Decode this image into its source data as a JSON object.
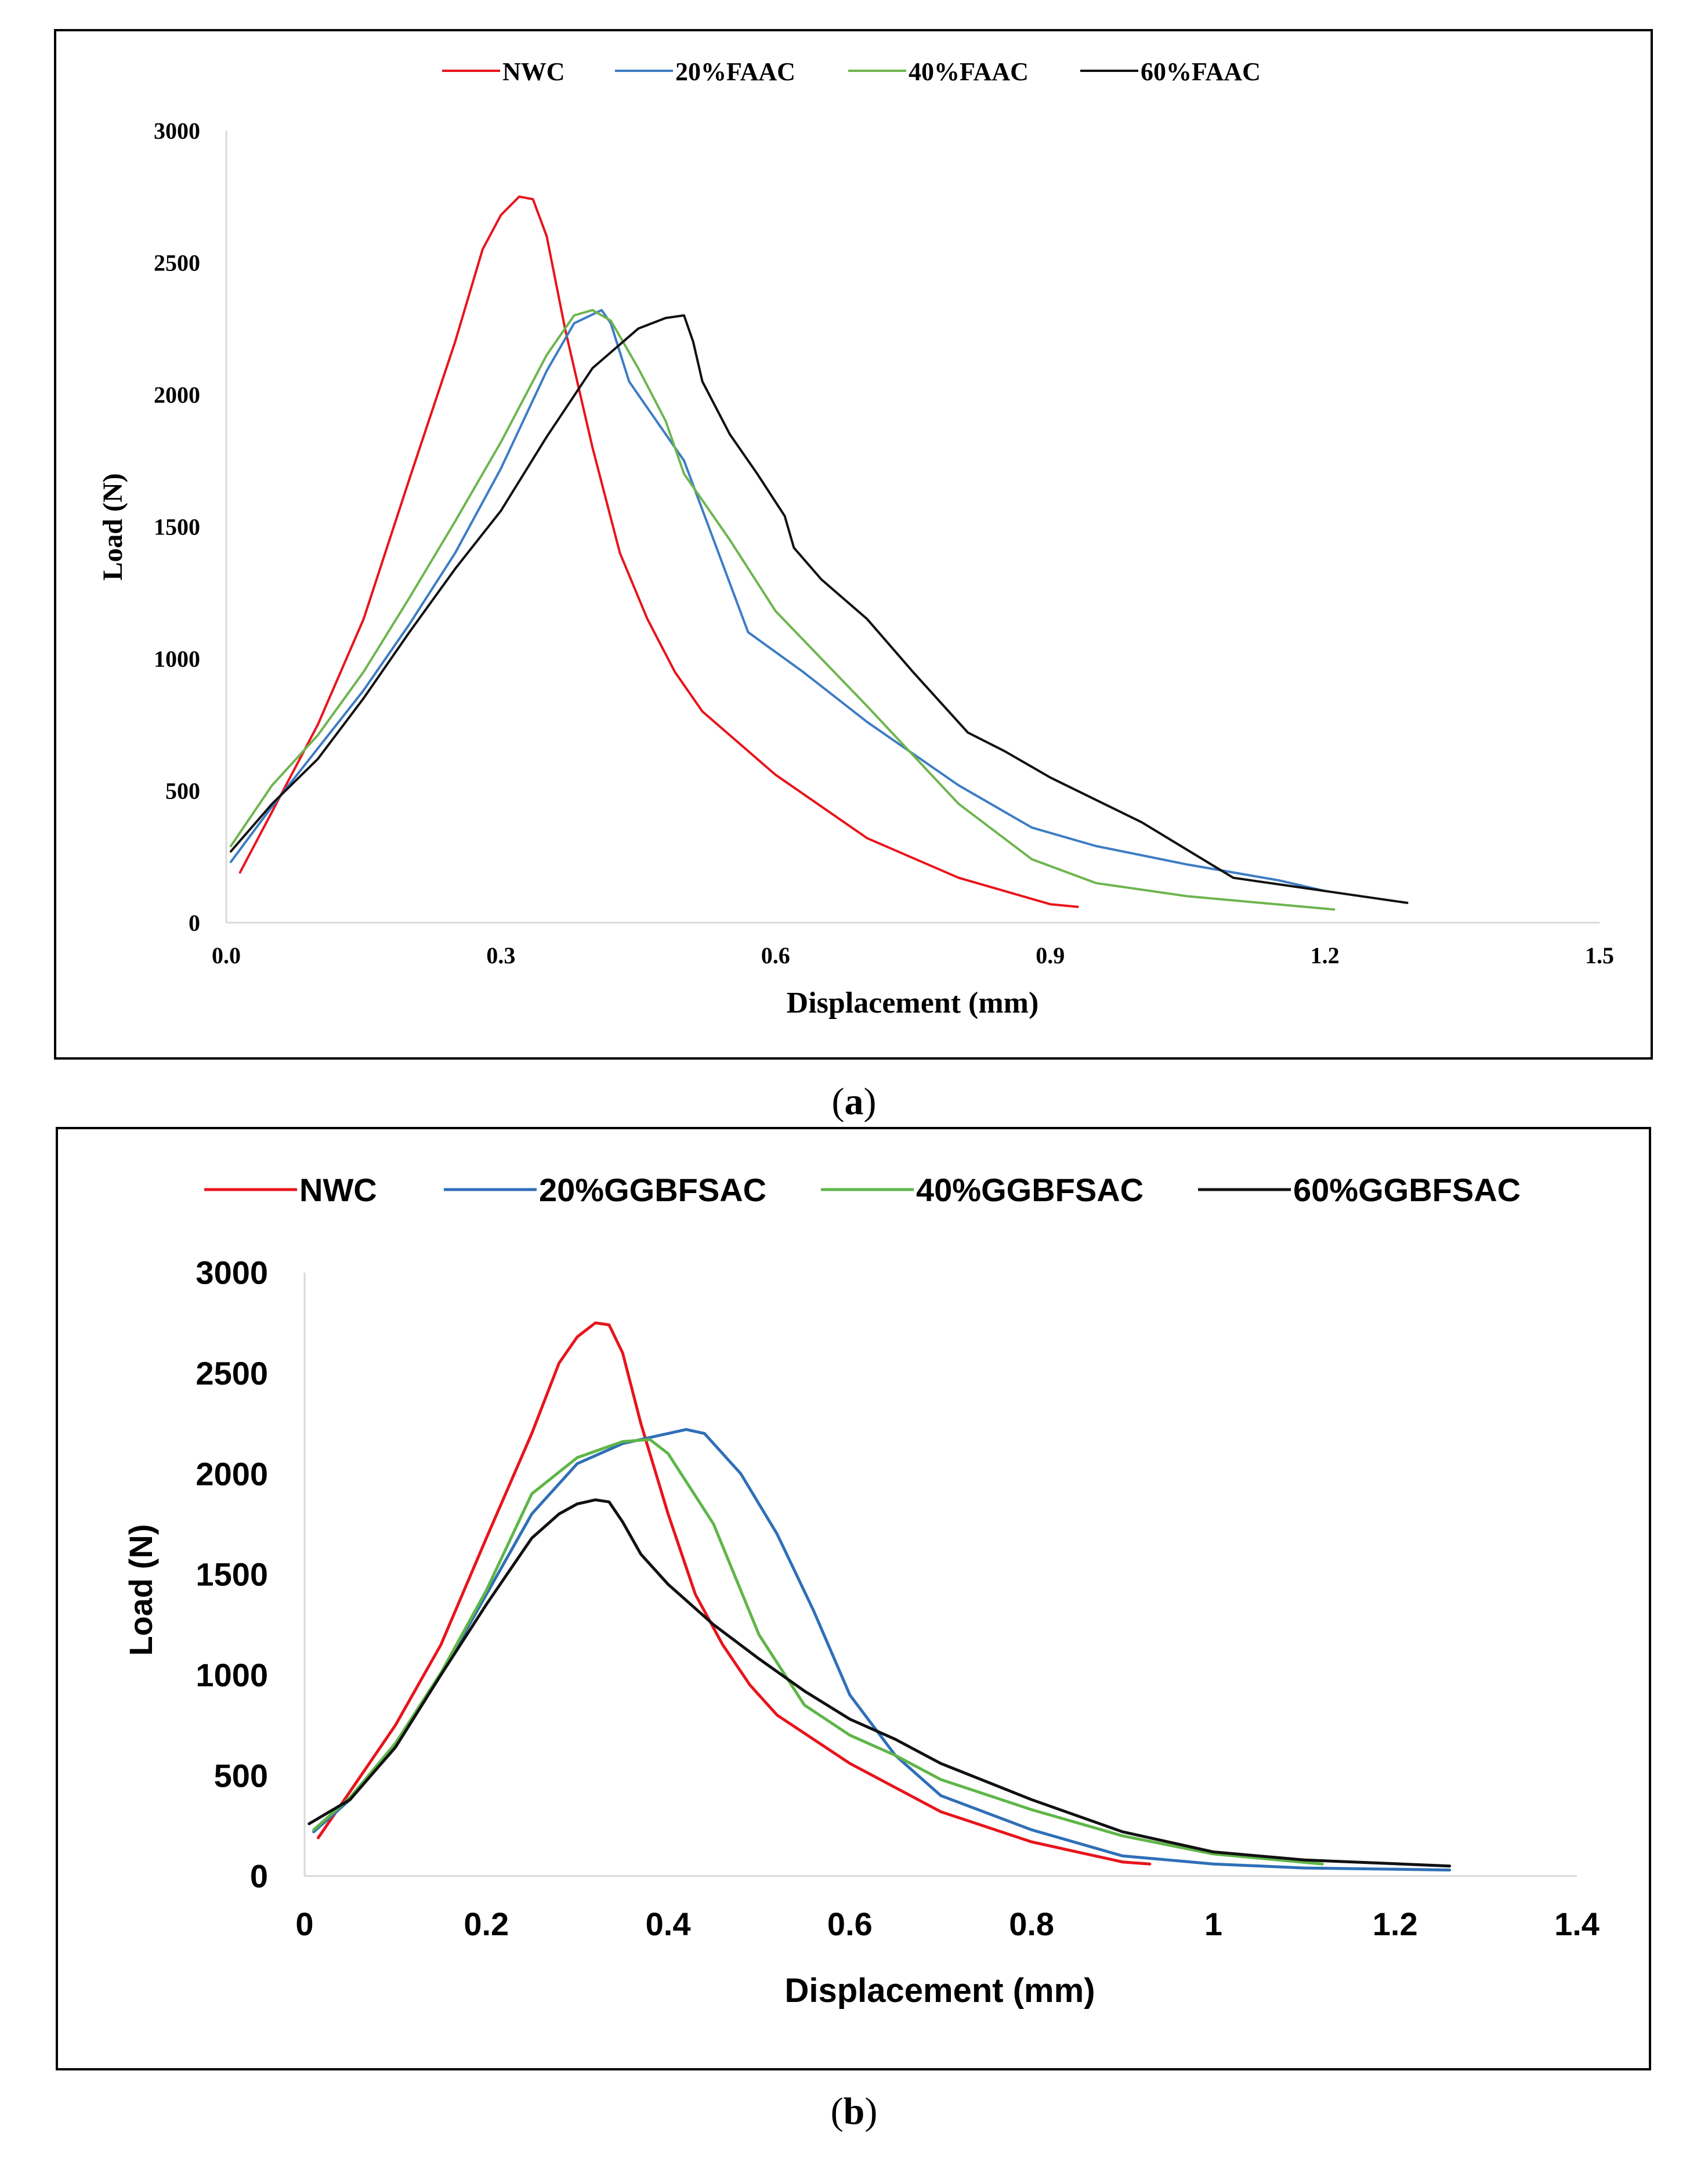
{
  "panel_labels": {
    "a": "a",
    "b": "b"
  },
  "chart_data": [
    {
      "type": "line",
      "panel": "a",
      "xlabel": "Displacement (mm)",
      "ylabel": "Load (N)",
      "xlim": [
        0,
        1.5
      ],
      "ylim": [
        0,
        3000
      ],
      "xticks": [
        "0.0",
        "0.3",
        "0.6",
        "0.9",
        "1.2",
        "1.5"
      ],
      "xtick_values": [
        0,
        0.3,
        0.6,
        0.9,
        1.2,
        1.5
      ],
      "yticks": [
        "0",
        "500",
        "1000",
        "1500",
        "2000",
        "2500",
        "3000"
      ],
      "ytick_values": [
        0,
        500,
        1000,
        1500,
        2000,
        2500,
        3000
      ],
      "legend_position": "top",
      "series": [
        {
          "name": "NWC",
          "color": "#e8141b",
          "x": [
            0.015,
            0.05,
            0.1,
            0.15,
            0.2,
            0.25,
            0.28,
            0.3,
            0.32,
            0.335,
            0.35,
            0.37,
            0.4,
            0.43,
            0.46,
            0.49,
            0.52,
            0.6,
            0.7,
            0.8,
            0.85,
            0.9,
            0.93
          ],
          "y": [
            190,
            420,
            750,
            1150,
            1680,
            2200,
            2550,
            2680,
            2750,
            2740,
            2600,
            2250,
            1800,
            1400,
            1150,
            950,
            800,
            560,
            320,
            170,
            120,
            70,
            60
          ]
        },
        {
          "name": "20%FAAC",
          "color": "#3d7cc4",
          "x": [
            0.005,
            0.05,
            0.1,
            0.15,
            0.2,
            0.25,
            0.3,
            0.35,
            0.38,
            0.41,
            0.42,
            0.44,
            0.5,
            0.57,
            0.63,
            0.7,
            0.8,
            0.88,
            0.95,
            1.05,
            1.15,
            1.2
          ],
          "y": [
            230,
            440,
            660,
            880,
            1130,
            1400,
            1720,
            2090,
            2270,
            2320,
            2270,
            2050,
            1750,
            1100,
            950,
            760,
            520,
            360,
            290,
            220,
            160,
            120
          ]
        },
        {
          "name": "40%FAAC",
          "color": "#6eb54f",
          "x": [
            0.005,
            0.05,
            0.1,
            0.15,
            0.2,
            0.25,
            0.3,
            0.35,
            0.38,
            0.4,
            0.42,
            0.45,
            0.48,
            0.5,
            0.55,
            0.6,
            0.7,
            0.8,
            0.88,
            0.95,
            1.05,
            1.21
          ],
          "y": [
            290,
            520,
            710,
            950,
            1230,
            1520,
            1820,
            2150,
            2300,
            2320,
            2280,
            2100,
            1900,
            1700,
            1450,
            1180,
            820,
            450,
            240,
            150,
            100,
            50
          ]
        },
        {
          "name": "60%FAAC",
          "color": "#111111",
          "x": [
            0.005,
            0.05,
            0.1,
            0.15,
            0.2,
            0.25,
            0.3,
            0.35,
            0.4,
            0.45,
            0.48,
            0.5,
            0.51,
            0.52,
            0.55,
            0.58,
            0.61,
            0.62,
            0.65,
            0.7,
            0.75,
            0.81,
            0.85,
            0.9,
            1.0,
            1.1,
            1.2,
            1.29
          ],
          "y": [
            270,
            450,
            620,
            850,
            1100,
            1340,
            1560,
            1840,
            2100,
            2250,
            2290,
            2300,
            2200,
            2050,
            1850,
            1700,
            1540,
            1420,
            1300,
            1150,
            950,
            720,
            650,
            550,
            380,
            170,
            120,
            75
          ]
        }
      ]
    },
    {
      "type": "line",
      "panel": "b",
      "xlabel": "Displacement  (mm)",
      "ylabel": "Load  (N)",
      "xlim": [
        0,
        1.4
      ],
      "ylim": [
        0,
        3000
      ],
      "xticks": [
        "0",
        "0.2",
        "0.4",
        "0.6",
        "0.8",
        "1",
        "1.2",
        "1.4"
      ],
      "xtick_values": [
        0,
        0.2,
        0.4,
        0.6,
        0.8,
        1.0,
        1.2,
        1.4
      ],
      "yticks": [
        "0",
        "500",
        "1000",
        "1500",
        "2000",
        "2500",
        "3000"
      ],
      "ytick_values": [
        0,
        500,
        1000,
        1500,
        2000,
        2500,
        3000
      ],
      "legend_position": "top",
      "series": [
        {
          "name": "NWC",
          "color": "#e8141b",
          "x": [
            0.015,
            0.05,
            0.1,
            0.15,
            0.2,
            0.25,
            0.28,
            0.3,
            0.32,
            0.335,
            0.35,
            0.37,
            0.4,
            0.43,
            0.46,
            0.49,
            0.52,
            0.6,
            0.7,
            0.8,
            0.85,
            0.9,
            0.93
          ],
          "y": [
            190,
            420,
            750,
            1150,
            1680,
            2200,
            2550,
            2680,
            2750,
            2740,
            2600,
            2250,
            1800,
            1400,
            1150,
            950,
            800,
            560,
            320,
            170,
            120,
            70,
            60
          ]
        },
        {
          "name": "20%GGBFSAC",
          "color": "#2f6fb7",
          "x": [
            0.01,
            0.05,
            0.1,
            0.15,
            0.2,
            0.25,
            0.3,
            0.35,
            0.4,
            0.42,
            0.44,
            0.48,
            0.52,
            0.56,
            0.6,
            0.65,
            0.7,
            0.8,
            0.9,
            1.0,
            1.1,
            1.26
          ],
          "y": [
            220,
            380,
            650,
            1000,
            1400,
            1800,
            2050,
            2150,
            2200,
            2220,
            2200,
            2000,
            1700,
            1320,
            900,
            600,
            400,
            230,
            100,
            60,
            40,
            30
          ]
        },
        {
          "name": "40%GGBFSAC",
          "color": "#5fb548",
          "x": [
            0.01,
            0.05,
            0.1,
            0.15,
            0.2,
            0.25,
            0.3,
            0.35,
            0.38,
            0.4,
            0.45,
            0.5,
            0.55,
            0.6,
            0.65,
            0.7,
            0.8,
            0.9,
            1.0,
            1.12
          ],
          "y": [
            230,
            390,
            660,
            1010,
            1420,
            1900,
            2080,
            2160,
            2170,
            2100,
            1750,
            1200,
            850,
            700,
            600,
            480,
            330,
            200,
            110,
            60
          ]
        },
        {
          "name": "60%GGBFSAC",
          "color": "#111111",
          "x": [
            0.005,
            0.05,
            0.1,
            0.15,
            0.2,
            0.25,
            0.28,
            0.3,
            0.32,
            0.335,
            0.35,
            0.37,
            0.4,
            0.45,
            0.5,
            0.55,
            0.6,
            0.65,
            0.7,
            0.8,
            0.9,
            1.0,
            1.1,
            1.26
          ],
          "y": [
            260,
            380,
            640,
            1000,
            1350,
            1680,
            1800,
            1850,
            1870,
            1860,
            1760,
            1600,
            1450,
            1250,
            1080,
            920,
            780,
            680,
            560,
            380,
            220,
            120,
            80,
            50
          ]
        }
      ]
    }
  ]
}
